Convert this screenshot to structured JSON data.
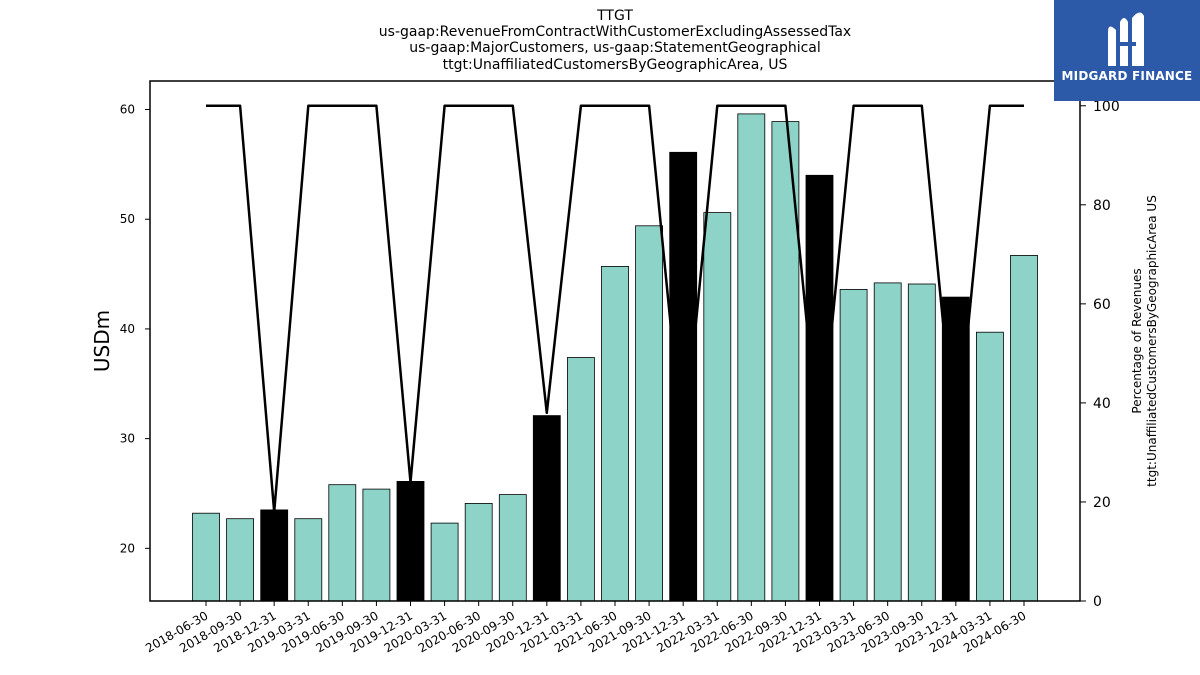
{
  "chart_data": {
    "type": "bar",
    "title_lines": [
      "TTGT",
      "us-gaap:RevenueFromContractWithCustomerExcludingAssessedTax",
      "us-gaap:MajorCustomers, us-gaap:StatementGeographical",
      "ttgt:UnaffiliatedCustomersByGeographicArea, US"
    ],
    "categories": [
      "2018-06-30",
      "2018-09-30",
      "2018-12-31",
      "2019-03-31",
      "2019-06-30",
      "2019-09-30",
      "2019-12-31",
      "2020-03-31",
      "2020-06-30",
      "2020-09-30",
      "2020-12-31",
      "2021-03-31",
      "2021-06-30",
      "2021-09-30",
      "2021-12-31",
      "2022-03-31",
      "2022-06-30",
      "2022-09-30",
      "2022-12-31",
      "2023-03-31",
      "2023-06-30",
      "2023-09-30",
      "2023-12-31",
      "2024-03-31",
      "2024-06-30"
    ],
    "bar_values": [
      23.2,
      22.7,
      23.5,
      22.7,
      25.8,
      25.4,
      26.1,
      22.3,
      24.1,
      24.9,
      32.1,
      37.4,
      45.7,
      49.4,
      56.1,
      50.6,
      59.6,
      58.9,
      54.0,
      43.6,
      44.2,
      44.1,
      42.9,
      39.7,
      46.7
    ],
    "bar_colors": [
      "#8dd3c7",
      "#8dd3c7",
      "#000000",
      "#8dd3c7",
      "#8dd3c7",
      "#8dd3c7",
      "#000000",
      "#8dd3c7",
      "#8dd3c7",
      "#8dd3c7",
      "#000000",
      "#8dd3c7",
      "#8dd3c7",
      "#8dd3c7",
      "#000000",
      "#8dd3c7",
      "#8dd3c7",
      "#8dd3c7",
      "#000000",
      "#8dd3c7",
      "#8dd3c7",
      "#8dd3c7",
      "#000000",
      "#8dd3c7",
      "#8dd3c7"
    ],
    "line_values": [
      100,
      100,
      18,
      100,
      100,
      100,
      24,
      100,
      100,
      100,
      38,
      100,
      100,
      100,
      30,
      100,
      100,
      100,
      30,
      100,
      100,
      100,
      30,
      100,
      100
    ],
    "ylabel_left": "USDm",
    "ylabel_right_lines": [
      "Percentage of Revenues",
      "ttgt:UnaffiliatedCustomersByGeographicArea US"
    ],
    "ylim_left": [
      15.2,
      62.6
    ],
    "ylim_right": [
      0,
      105
    ],
    "yticks_left": [
      20,
      30,
      40,
      50,
      60
    ],
    "yticks_right": [
      0,
      20,
      40,
      60,
      80,
      100
    ],
    "grid": false
  },
  "logo": {
    "text": "MIDGARD FINANCE"
  }
}
